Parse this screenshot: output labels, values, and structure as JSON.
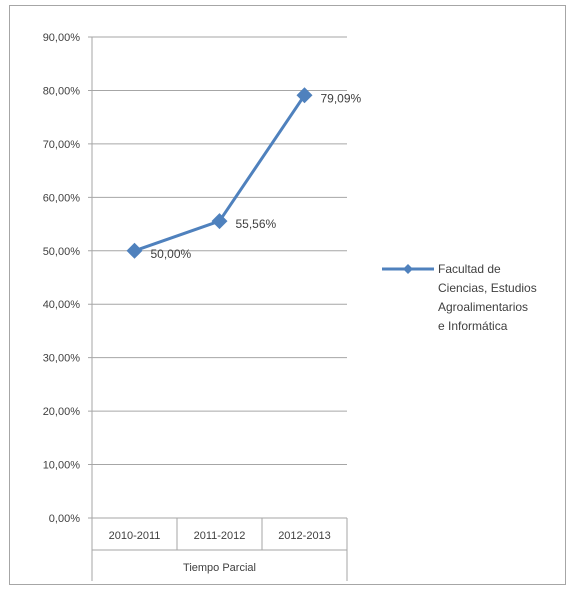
{
  "chart_data": {
    "type": "line",
    "categories": [
      "2010-2011",
      "2011-2012",
      "2012-2013"
    ],
    "xlabel": "Tiempo Parcial",
    "ylabel": "",
    "ylim": [
      0,
      90
    ],
    "yticks": [
      0,
      10,
      20,
      30,
      40,
      50,
      60,
      70,
      80,
      90
    ],
    "ytick_labels": [
      "0,00%",
      "10,00%",
      "20,00%",
      "30,00%",
      "40,00%",
      "50,00%",
      "60,00%",
      "70,00%",
      "80,00%",
      "90,00%"
    ],
    "grid": true,
    "legend_position": "right",
    "series": [
      {
        "name_lines": [
          "Facultad de",
          "Ciencias, Estudios",
          "Agroalimentarios",
          "e Informática"
        ],
        "values": [
          50.0,
          55.56,
          79.09
        ],
        "data_labels": [
          "50,00%",
          "55,56%",
          "79,09%"
        ],
        "color": "#4f81bd"
      }
    ]
  },
  "colors": {
    "grid": "#a6a6a6",
    "axis": "#a6a6a6",
    "series": "#4f81bd"
  }
}
